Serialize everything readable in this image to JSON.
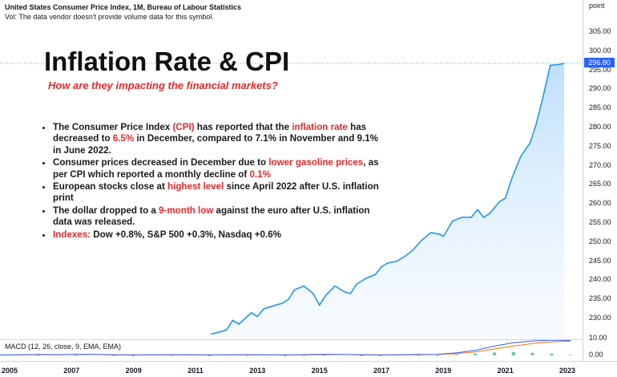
{
  "header": {
    "title": "United States Consumer Price Index, 1M, Bureau of Labour Statistics",
    "vol_note": "Vol: The data vendor doesn't provide volume data for this symbol.",
    "unit": "point"
  },
  "overlay": {
    "title": "Inflation Rate & CPI",
    "subtitle": "How are they impacting the financial markets?",
    "bullets": [
      {
        "segments": [
          {
            "text": "The Consumer Price Index ",
            "hl": false
          },
          {
            "text": "(CPI)",
            "hl": true
          },
          {
            "text": " has reported that the ",
            "hl": false
          },
          {
            "text": "inflation rate",
            "hl": true
          },
          {
            "text": " has decreased to ",
            "hl": false
          },
          {
            "text": "6.5%",
            "hl": true
          },
          {
            "text": " in December, compared to 7.1% in November and 9.1% in June 2022.",
            "hl": false
          }
        ]
      },
      {
        "segments": [
          {
            "text": "Consumer prices decreased in December due to ",
            "hl": false
          },
          {
            "text": "lower gasoline prices",
            "hl": true
          },
          {
            "text": ", as per CPI which reported a monthly decline of ",
            "hl": false
          },
          {
            "text": "0.1%",
            "hl": true
          }
        ]
      },
      {
        "segments": [
          {
            "text": "European stocks close at ",
            "hl": false
          },
          {
            "text": "highest level",
            "hl": true
          },
          {
            "text": " since April 2022 after U.S. inflation print",
            "hl": false
          }
        ]
      },
      {
        "segments": [
          {
            "text": "The dollar dropped to a ",
            "hl": false
          },
          {
            "text": "9-month low",
            "hl": true
          },
          {
            "text": " against the euro after U.S. inflation data was released.",
            "hl": false
          }
        ]
      },
      {
        "segments": [
          {
            "text": "Indexes:",
            "hl": true
          },
          {
            "text": " Dow +0.8%, S&P 500 +0.3%, Nasdaq +0.6%",
            "hl": false
          }
        ]
      }
    ]
  },
  "macd": {
    "label": "MACD (12, 26, close, 9, EMA, EMA)",
    "ticks": [
      "10.00",
      "0.00"
    ],
    "macd_values": [
      0.2,
      0.3,
      0.5,
      0.4,
      0.6,
      0.5,
      0.3,
      0.2,
      0.3,
      0.4,
      0.3,
      0.2,
      0.3,
      0.4,
      0.3,
      0.2,
      0.4,
      0.6,
      0.5,
      0.3,
      0.2,
      0.3,
      0.5,
      0.6,
      1.5,
      3.0,
      5.5,
      7.5,
      8.5,
      9.0,
      8.8
    ],
    "signal_values": [
      0.2,
      0.3,
      0.4,
      0.4,
      0.5,
      0.5,
      0.4,
      0.3,
      0.3,
      0.3,
      0.3,
      0.3,
      0.3,
      0.3,
      0.3,
      0.3,
      0.3,
      0.4,
      0.5,
      0.4,
      0.3,
      0.3,
      0.4,
      0.5,
      1.0,
      2.0,
      3.8,
      5.5,
      7.0,
      8.0,
      8.5
    ]
  },
  "colors": {
    "line": "#2196f3",
    "area_top": "#bbdefb",
    "highlight": "#e12b2b",
    "price_label_bg": "#2962ff",
    "macd_line": "#2962ff",
    "signal_line": "#ff6d00",
    "hist_up": "#26a69a"
  },
  "chart_data": {
    "type": "area",
    "title": "United States Consumer Price Index, 1M, Bureau of Labour Statistics",
    "ylabel": "point",
    "ylim": [
      225,
      310
    ],
    "yticks": [
      230,
      235,
      240,
      245,
      250,
      255,
      260,
      265,
      270,
      275,
      280,
      285,
      290,
      295,
      300,
      305
    ],
    "xticks": [
      "2005",
      "2007",
      "2009",
      "2011",
      "2013",
      "2015",
      "2017",
      "2019",
      "2021",
      "2023"
    ],
    "xlim": [
      2005.0,
      2023.0
    ],
    "last_value": "296.80",
    "series": [
      {
        "x": [
          2011.5,
          2011.8,
          2012.0,
          2012.2,
          2012.4,
          2012.6,
          2012.8,
          2013.0,
          2013.2,
          2013.4,
          2013.6,
          2013.8,
          2014.0,
          2014.2,
          2014.5,
          2014.8,
          2015.0,
          2015.2,
          2015.5,
          2015.8,
          2016.0,
          2016.2,
          2016.5,
          2016.8,
          2017.0,
          2017.2,
          2017.5,
          2017.8,
          2018.0,
          2018.3,
          2018.6,
          2018.9,
          2019.0,
          2019.3,
          2019.6,
          2019.9,
          2020.1,
          2020.3,
          2020.5,
          2020.8,
          2021.0,
          2021.2,
          2021.5,
          2021.8,
          2022.0,
          2022.2,
          2022.45,
          2022.7,
          2022.9
        ],
        "y": [
          225.9,
          226.5,
          227.0,
          229.5,
          228.5,
          230.0,
          231.5,
          230.5,
          232.5,
          233.0,
          233.5,
          234.0,
          235.0,
          237.5,
          238.5,
          236.5,
          233.5,
          236.0,
          238.5,
          237.0,
          236.5,
          239.0,
          240.5,
          241.5,
          243.5,
          244.5,
          245.0,
          246.5,
          247.8,
          250.5,
          252.5,
          252.0,
          251.5,
          255.5,
          256.5,
          256.5,
          258.5,
          256.5,
          257.5,
          260.5,
          261.5,
          266.5,
          272.5,
          276.0,
          281.0,
          287.5,
          296.3,
          296.5,
          296.8
        ]
      }
    ]
  }
}
